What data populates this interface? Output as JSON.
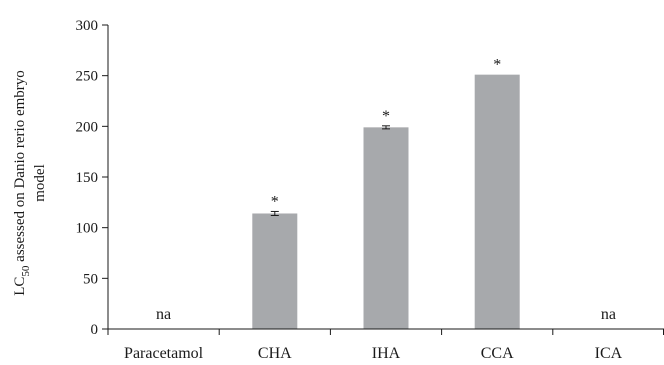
{
  "chart_data": {
    "type": "bar",
    "categories": [
      "Paracetamol",
      "CHA",
      "IHA",
      "CCA",
      "ICA"
    ],
    "values": [
      null,
      114,
      199,
      251,
      null
    ],
    "errors": [
      null,
      2,
      1.5,
      0,
      null
    ],
    "annotations": [
      "na",
      "*",
      "*",
      "*",
      "na"
    ],
    "ylabel_line1": "LC",
    "ylabel_sub": "50",
    "ylabel_line1_rest": " assessed on Danio rerio embryo",
    "ylabel_line2": "model",
    "ylim": [
      0,
      300
    ],
    "yticks": [
      0,
      50,
      100,
      150,
      200,
      250,
      300
    ],
    "grid": false,
    "bar_color": "#a7a9ac"
  }
}
